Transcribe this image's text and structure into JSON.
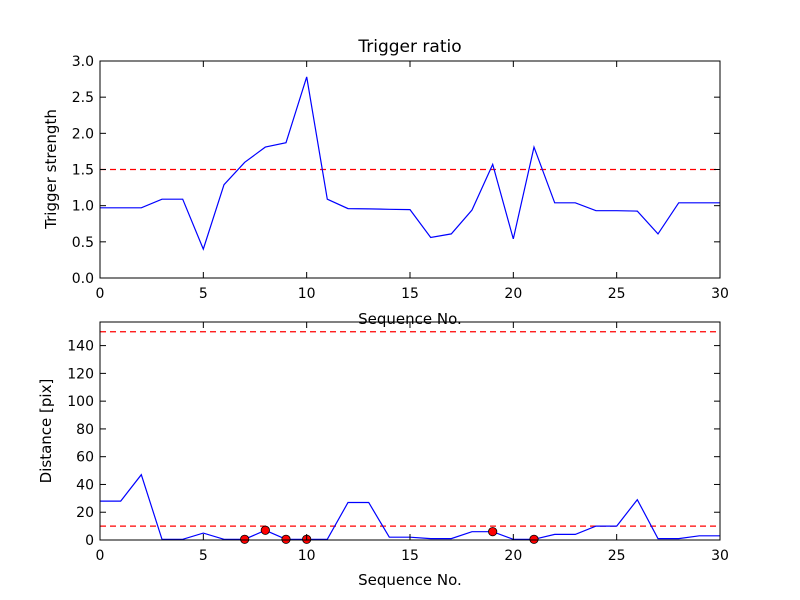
{
  "chart_data": [
    {
      "type": "line",
      "title": "Trigger ratio",
      "xlabel": "Sequence No.",
      "ylabel": "Trigger strength",
      "xlim": [
        0,
        30
      ],
      "ylim": [
        0,
        3.0
      ],
      "xticks": [
        "0",
        "5",
        "10",
        "15",
        "20",
        "25",
        "30"
      ],
      "yticks": [
        "0.0",
        "0.5",
        "1.0",
        "1.5",
        "2.0",
        "2.5",
        "3.0"
      ],
      "grid": false,
      "line_color": "#0000ff",
      "threshold_color": "#ff0000",
      "threshold": 1.5,
      "x": [
        0,
        1,
        2,
        3,
        4,
        5,
        6,
        7,
        8,
        9,
        10,
        11,
        12,
        13,
        14,
        15,
        16,
        17,
        18,
        19,
        20,
        21,
        22,
        23,
        24,
        25,
        26,
        27,
        28,
        29,
        30
      ],
      "values": [
        0.97,
        0.97,
        0.97,
        1.09,
        1.09,
        0.4,
        1.29,
        1.6,
        1.81,
        1.87,
        2.78,
        1.09,
        0.96,
        0.955,
        0.95,
        0.945,
        0.56,
        0.61,
        0.94,
        1.57,
        0.54,
        1.81,
        1.04,
        1.04,
        0.93,
        0.93,
        0.925,
        0.61,
        1.04,
        1.04,
        1.04
      ]
    },
    {
      "type": "line",
      "title": "",
      "xlabel": "Sequence No.",
      "ylabel": "Distance [pix]",
      "xlim": [
        0,
        30
      ],
      "ylim": [
        0,
        157
      ],
      "xticks": [
        "0",
        "5",
        "10",
        "15",
        "20",
        "25",
        "30"
      ],
      "yticks": [
        "0",
        "20",
        "40",
        "60",
        "80",
        "100",
        "120",
        "140"
      ],
      "grid": false,
      "line_color": "#0000ff",
      "threshold_color": "#ff0000",
      "marker_color": "#ff0000",
      "thresholds": [
        10,
        150
      ],
      "x": [
        0,
        1,
        2,
        3,
        4,
        5,
        6,
        7,
        8,
        9,
        10,
        11,
        12,
        13,
        14,
        15,
        16,
        17,
        18,
        19,
        20,
        21,
        22,
        23,
        24,
        25,
        26,
        27,
        28,
        29,
        30
      ],
      "values": [
        28,
        28,
        47,
        0.5,
        0.5,
        5,
        0.5,
        0.5,
        7,
        0.5,
        0.5,
        0.5,
        27,
        27,
        2,
        2,
        1,
        1,
        6,
        6,
        0.5,
        0.5,
        4,
        4,
        10,
        10,
        29,
        1,
        1,
        3,
        3
      ],
      "highlight_points": [
        {
          "x": 7,
          "y": 0.5
        },
        {
          "x": 8,
          "y": 7
        },
        {
          "x": 9,
          "y": 0.5
        },
        {
          "x": 10,
          "y": 0.5
        },
        {
          "x": 19,
          "y": 6
        },
        {
          "x": 21,
          "y": 0.5
        }
      ]
    }
  ]
}
